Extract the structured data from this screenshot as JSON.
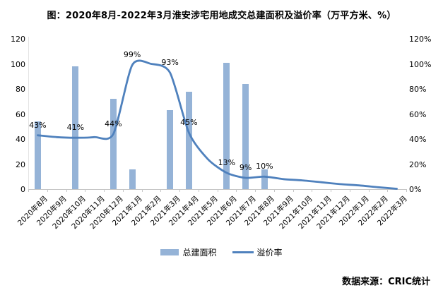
{
  "title": "图：2020年8月-2022年3月淮安涉宅用地成交总建面积及溢价率（万平方米、%）",
  "source": "数据来源：CRIC统计",
  "legend": {
    "bar_label": "总建面积",
    "line_label": "溢价率"
  },
  "colors": {
    "bar": "#95B3D7",
    "line": "#4F81BD",
    "axis_line": "#C6C6C6",
    "text": "#000000"
  },
  "chart_data": {
    "type": "combo bar+line",
    "categories": [
      "2020年8月",
      "2020年9月",
      "2020年10月",
      "2020年11月",
      "2020年12月",
      "2021年1月",
      "2021年2月",
      "2021年3月",
      "2021年4月",
      "2021年5月",
      "2021年6月",
      "2021年7月",
      "2021年8月",
      "2021年9月",
      "2021年10月",
      "2021年11月",
      "2021年12月",
      "2022年1月",
      "2022年2月",
      "2022年3月"
    ],
    "left_axis": {
      "ticks": [
        0,
        20,
        40,
        60,
        80,
        100,
        120
      ],
      "range": [
        0,
        120
      ]
    },
    "right_axis": {
      "ticks": [
        "0%",
        "20%",
        "40%",
        "60%",
        "80%",
        "100%",
        "120%"
      ],
      "range": [
        0,
        120
      ]
    },
    "grid": false,
    "legend_position": "bottom-center",
    "series": [
      {
        "name": "总建面积",
        "type": "bar",
        "axis": "left",
        "values": [
          54,
          null,
          98,
          null,
          72,
          16,
          null,
          63,
          78,
          null,
          101,
          84,
          16,
          null,
          null,
          null,
          null,
          null,
          null,
          null
        ]
      },
      {
        "name": "溢价率",
        "type": "line",
        "axis": "right",
        "smooth": true,
        "values": [
          43,
          41.5,
          41,
          41.5,
          44,
          99,
          100,
          93,
          45,
          24,
          13,
          9,
          10,
          8,
          7,
          5.5,
          4,
          3,
          1.5,
          0.3
        ],
        "point_labels": [
          {
            "index": 0,
            "text": "43%"
          },
          {
            "index": 2,
            "text": "41%"
          },
          {
            "index": 4,
            "text": "44%"
          },
          {
            "index": 5,
            "text": "99%"
          },
          {
            "index": 7,
            "text": "93%"
          },
          {
            "index": 8,
            "text": "45%"
          },
          {
            "index": 10,
            "text": "13%"
          },
          {
            "index": 11,
            "text": "9%"
          },
          {
            "index": 12,
            "text": "10%"
          }
        ]
      }
    ]
  }
}
